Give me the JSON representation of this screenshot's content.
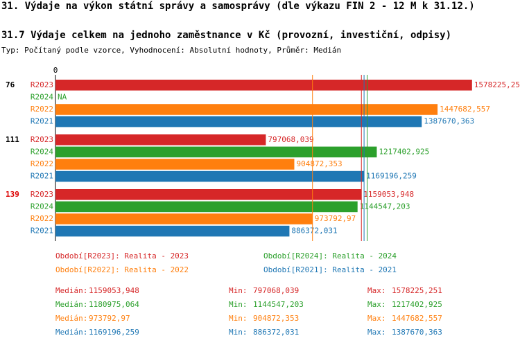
{
  "chart_data": {
    "type": "bar",
    "orientation": "horizontal",
    "title": "31. Výdaje na výkon státní správy a samosprávy (dle výkazu FIN 2 - 12 M k 31.12.)",
    "subtitle": "31.7 Výdaje celkem na jednoho zaměstnance v Kč (provozní, investiční, odpisy)",
    "note": "Typ: Počítaný podle vzorce, Vyhodnocení: Absolutní hodnoty, Průměr: Medián",
    "groups": [
      "76",
      "111",
      "139"
    ],
    "group_colors": [
      "#000000",
      "#000000",
      "#dd0000"
    ],
    "xlim": [
      0,
      1760000
    ],
    "xticks": [
      0
    ],
    "stat_names": {
      "median": "Medián:",
      "min": "Min:",
      "max": "Max:"
    },
    "series": [
      {
        "name": "R2023",
        "legend": "Období[R2023]: Realita - 2023",
        "color": "#d62728",
        "values": [
          1578225.251,
          797068.039,
          1159053.948
        ],
        "value_labels": [
          "1578225,251",
          "797068,039",
          "1159053,948"
        ],
        "median": 1159053.948,
        "median_label": "1159053,948",
        "min": 797068.039,
        "min_label": "797068,039",
        "max": 1578225.251,
        "max_label": "1578225,251"
      },
      {
        "name": "R2024",
        "legend": "Období[R2024]: Realita - 2024",
        "color": "#2ca02c",
        "values": [
          null,
          1217402.925,
          1144547.203
        ],
        "value_labels": [
          "NA",
          "1217402,925",
          "1144547,203"
        ],
        "median": 1180975.064,
        "median_label": "1180975,064",
        "min": 1144547.203,
        "min_label": "1144547,203",
        "max": 1217402.925,
        "max_label": "1217402,925"
      },
      {
        "name": "R2022",
        "legend": "Období[R2022]: Realita - 2022",
        "color": "#ff7f0e",
        "values": [
          1447682.557,
          904872.353,
          973792.97
        ],
        "value_labels": [
          "1447682,557",
          "904872,353",
          "973792,97"
        ],
        "median": 973792.97,
        "median_label": "973792,97",
        "min": 904872.353,
        "min_label": "904872,353",
        "max": 1447682.557,
        "max_label": "1447682,557"
      },
      {
        "name": "R2021",
        "legend": "Období[R2021]: Realita - 2021",
        "color": "#1f77b4",
        "values": [
          1387670.363,
          1169196.259,
          886372.031
        ],
        "value_labels": [
          "1387670,363",
          "1169196,259",
          "886372,031"
        ],
        "median": 1169196.259,
        "median_label": "1169196,259",
        "min": 886372.031,
        "min_label": "886372,031",
        "max": 1387670.363,
        "max_label": "1387670,363"
      }
    ]
  }
}
